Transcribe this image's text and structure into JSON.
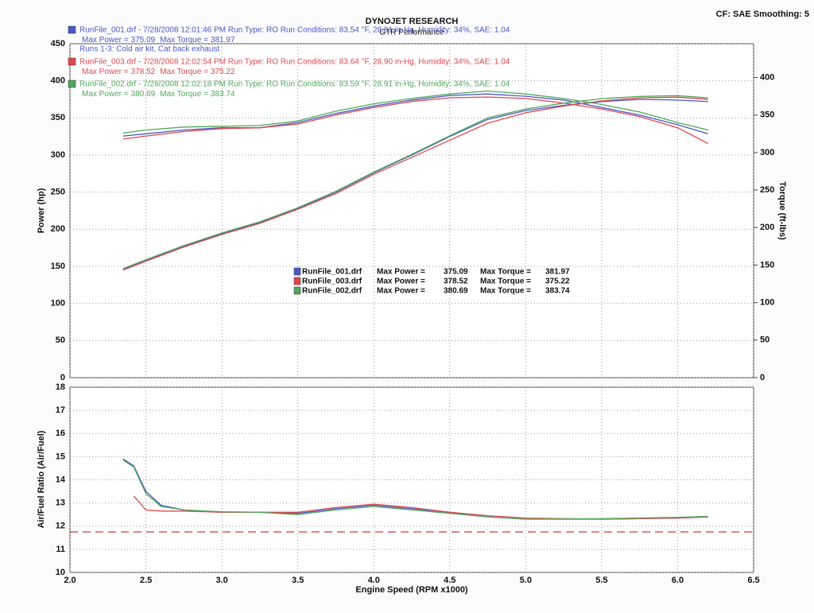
{
  "header": {
    "title": "DYNOJET RESEARCH",
    "subtitle": "GTR Performance",
    "settings": "CF: SAE  Smoothing: 5",
    "note": "Runs 1-3: Cold air kit, Cat back exhaust"
  },
  "chart_data": [
    {
      "type": "dyno",
      "ylabel": "Power (hp)",
      "y2label": "Torque (ft-lbs)",
      "max_power_label": "Max Power =",
      "max_torque_label": "Max Torque =",
      "x": [
        2.35,
        2.5,
        2.75,
        3.0,
        3.25,
        3.5,
        3.75,
        4.0,
        4.25,
        4.5,
        4.75,
        5.0,
        5.25,
        5.5,
        5.75,
        6.0,
        6.2
      ],
      "xlim": [
        2,
        6.5
      ],
      "xticks": [
        2,
        2.5,
        3,
        3.5,
        4,
        4.5,
        5,
        5.5,
        6,
        6.5
      ],
      "ylim": [
        0,
        450
      ],
      "yticks": [
        0,
        50,
        100,
        150,
        200,
        250,
        300,
        350,
        400,
        450
      ],
      "y2lim": [
        0,
        445
      ],
      "y2ticks": [
        0,
        50,
        100,
        150,
        200,
        250,
        300,
        350,
        400
      ],
      "grid": true,
      "series": [
        {
          "name": "RunFile_001.drf",
          "color": "#4a58c8",
          "run_info": "RunFile_001.drf - 7/28/2008 12:01:46 PM  Run Type: RO  Run Conditions: 83.54 °F, 28.91 in-Hg,  Humidity:  34%, SAE: 1.04",
          "max_power": 375.09,
          "max_torque": 381.97,
          "values": [
            146,
            158,
            177,
            194,
            209,
            228,
            250,
            276,
            300,
            325,
            348,
            360,
            367,
            372,
            375,
            374,
            372
          ],
          "torque_values": [
            322,
            325,
            330,
            333,
            333,
            340,
            352,
            362,
            370,
            376,
            378,
            375,
            370,
            360,
            350,
            337,
            325
          ]
        },
        {
          "name": "RunFile_003.drf",
          "color": "#e0474c",
          "run_info": "RunFile_003.drf - 7/28/2008 12:02:54 PM  Run Type: RO  Run Conditions: 83.64 °F, 28.90 in-Hg,  Humidity:  34%, SAE: 1.04",
          "max_power": 378.52,
          "max_torque": 375.22,
          "values": [
            145,
            157,
            176,
            193,
            208,
            227,
            248,
            274,
            297,
            320,
            343,
            357,
            366,
            373,
            377,
            378,
            375
          ],
          "torque_values": [
            318,
            322,
            328,
            332,
            333,
            338,
            350,
            360,
            368,
            373,
            374,
            372,
            366,
            358,
            348,
            333,
            312
          ]
        },
        {
          "name": "RunFile_002.drf",
          "color": "#4fa85a",
          "run_info": "RunFile_002.drf - 7/28/2008 12:02:18 PM  Run Type: RO  Run Conditions: 83.59 °F, 28.91 in-Hg,  Humidity:  34%, SAE: 1.04",
          "max_power": 380.69,
          "max_torque": 383.74,
          "values": [
            147,
            159,
            178,
            195,
            210,
            229,
            251,
            277,
            301,
            326,
            350,
            362,
            370,
            376,
            379,
            380,
            377
          ],
          "torque_values": [
            326,
            330,
            334,
            335,
            336,
            342,
            355,
            365,
            372,
            378,
            382,
            378,
            372,
            364,
            354,
            340,
            330
          ]
        }
      ]
    },
    {
      "type": "line",
      "ylabel": "Air/Fuel Ratio (Air/Fuel)",
      "xlabel": "Engine Speed (RPM x1000)",
      "x": [
        2.35,
        2.42,
        2.5,
        2.6,
        2.75,
        3.0,
        3.25,
        3.5,
        3.75,
        4.0,
        4.25,
        4.5,
        4.75,
        5.0,
        5.5,
        6.0,
        6.2
      ],
      "xlim": [
        2,
        6.5
      ],
      "xticks": [
        {
          "value": 2,
          "label": "2.0"
        },
        {
          "value": 2.5,
          "label": "2.5"
        },
        {
          "value": 3,
          "label": "3.0"
        },
        {
          "value": 3.5,
          "label": "3.5"
        },
        {
          "value": 4,
          "label": "4.0"
        },
        {
          "value": 4.5,
          "label": "4.5"
        },
        {
          "value": 5,
          "label": "5.0"
        },
        {
          "value": 5.5,
          "label": "5.5"
        },
        {
          "value": 6,
          "label": "6.0"
        },
        {
          "value": 6.5,
          "label": "6.5"
        }
      ],
      "ylim": [
        10,
        18
      ],
      "yticks": [
        10,
        11,
        12,
        13,
        14,
        15,
        16,
        17,
        18
      ],
      "grid": true,
      "target_afr": 11.75,
      "target_color": "#e03030",
      "series": [
        {
          "color": "#4a58c8",
          "values": [
            14.9,
            14.6,
            13.5,
            12.9,
            12.7,
            12.6,
            12.6,
            12.55,
            12.75,
            12.9,
            12.75,
            12.6,
            12.4,
            12.3,
            12.3,
            12.35,
            12.4
          ]
        },
        {
          "color": "#e0474c",
          "values": [
            null,
            13.3,
            12.7,
            12.65,
            12.65,
            12.6,
            12.6,
            12.6,
            12.8,
            12.95,
            12.8,
            12.6,
            12.45,
            12.35,
            12.3,
            12.35,
            12.4
          ]
        },
        {
          "color": "#4fa85a",
          "values": [
            14.85,
            14.55,
            13.4,
            12.85,
            12.7,
            12.62,
            12.6,
            12.5,
            12.7,
            12.85,
            12.7,
            12.55,
            12.4,
            12.3,
            12.32,
            12.38,
            12.42
          ]
        }
      ]
    }
  ]
}
